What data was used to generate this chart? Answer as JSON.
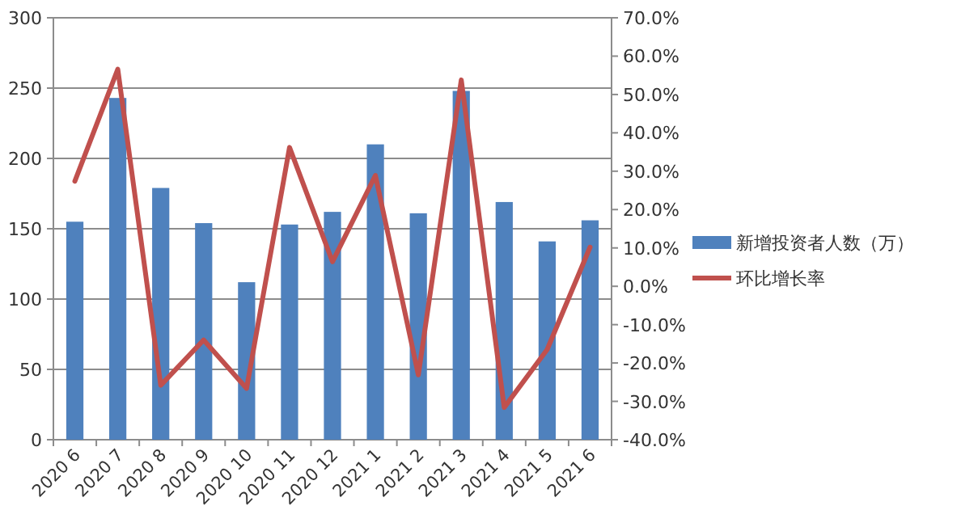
{
  "chart_data": {
    "type": "bar",
    "categories": [
      "2020 6",
      "2020 7",
      "2020 8",
      "2020 9",
      "2020 10",
      "2020 11",
      "2020 12",
      "2021 1",
      "2021 2",
      "2021 3",
      "2021 4",
      "2021 5",
      "2021 6"
    ],
    "series": [
      {
        "name": "新增投资者人数（万）",
        "color": "#4f81bd",
        "values": [
          155,
          243,
          179,
          154,
          112,
          153,
          162,
          210,
          161,
          248,
          169,
          141,
          156
        ]
      },
      {
        "name": "环比增长率",
        "type": "line",
        "axis": "y2",
        "color": "#c0504d",
        "values": [
          27.4,
          56.6,
          -25.8,
          -14,
          -26.6,
          36.2,
          6.4,
          28.9,
          -23.1,
          53.8,
          -31.6,
          -16.5,
          10.2
        ]
      }
    ],
    "ylim": [
      0,
      300
    ],
    "yticks": [
      0,
      50,
      100,
      150,
      200,
      250,
      300
    ],
    "y2lim": [
      -40,
      70
    ],
    "y2ticks": [
      {
        "value": -40,
        "label": "-40.0%"
      },
      {
        "value": -30,
        "label": "-30.0%"
      },
      {
        "value": -20,
        "label": "-20.0%"
      },
      {
        "value": -10,
        "label": "-10.0%"
      },
      {
        "value": 0,
        "label": "0.0%"
      },
      {
        "value": 10,
        "label": "10.0%"
      },
      {
        "value": 20,
        "label": "20.0%"
      },
      {
        "value": 30,
        "label": "30.0%"
      },
      {
        "value": 40,
        "label": "40.0%"
      },
      {
        "value": 50,
        "label": "50.0%"
      },
      {
        "value": 60,
        "label": "60.0%"
      },
      {
        "value": 70,
        "label": "70.0%"
      }
    ],
    "grid": "y",
    "legend": "right"
  }
}
